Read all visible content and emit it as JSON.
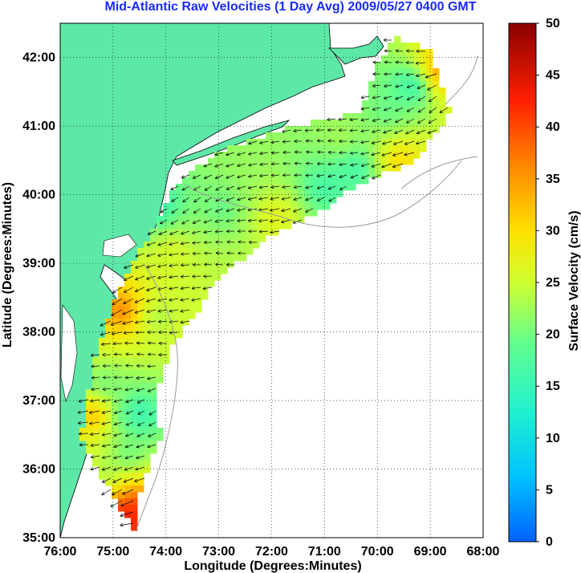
{
  "title": "Mid-Atlantic Raw Velocities (1 Day Avg) 2009/05/27 0400 GMT",
  "map": {
    "xlabel": "Longitude (Degrees:Minutes)",
    "ylabel": "Latitude (Degrees:Minutes)",
    "lon_range": [
      -76,
      -68
    ],
    "lat_range": [
      35,
      42.5
    ],
    "x_ticks": [
      {
        "value": -76,
        "label": "76:00"
      },
      {
        "value": -75,
        "label": "75:00"
      },
      {
        "value": -74,
        "label": "74:00"
      },
      {
        "value": -73,
        "label": "73:00"
      },
      {
        "value": -72,
        "label": "72:00"
      },
      {
        "value": -71,
        "label": "71:00"
      },
      {
        "value": -70,
        "label": "70:00"
      },
      {
        "value": -69,
        "label": "69:00"
      },
      {
        "value": -68,
        "label": "68:00"
      }
    ],
    "y_ticks": [
      {
        "value": 35,
        "label": "35:00"
      },
      {
        "value": 36,
        "label": "36:00"
      },
      {
        "value": 37,
        "label": "37:00"
      },
      {
        "value": 38,
        "label": "38:00"
      },
      {
        "value": 39,
        "label": "39:00"
      },
      {
        "value": 40,
        "label": "40:00"
      },
      {
        "value": 41,
        "label": "41:00"
      },
      {
        "value": 42,
        "label": "42:00"
      }
    ],
    "grid": true,
    "land_color": "#5ee8a8",
    "ocean_color": "#ffffff",
    "bathymetry_color": "#9a9a9a"
  },
  "colorbar": {
    "label": "Surface Velocity (cm/s)",
    "min": 0,
    "max": 50,
    "ticks": [
      "0",
      "5",
      "10",
      "15",
      "20",
      "25",
      "30",
      "35",
      "40",
      "45",
      "50"
    ],
    "colormap": [
      "#0060ff",
      "#00c0ff",
      "#20f0d0",
      "#60ff90",
      "#d0ff30",
      "#ffe000",
      "#ff8c00",
      "#ff2000",
      "#8b0000"
    ]
  },
  "chart_data": {
    "type": "heatmap",
    "title": "Mid-Atlantic Raw Velocities (1 Day Avg) 2009/05/27 0400 GMT",
    "xlabel": "Longitude (Degrees:Minutes)",
    "ylabel": "Latitude (Degrees:Minutes)",
    "xlim": [
      -76,
      -68
    ],
    "ylim": [
      35,
      42.5
    ],
    "colorbar_label": "Surface Velocity (cm/s)",
    "clim": [
      0,
      50
    ],
    "grid": true,
    "coverage_polygon": [
      [
        -75.6,
        36.5
      ],
      [
        -75.35,
        37.6
      ],
      [
        -74.9,
        38.6
      ],
      [
        -74.4,
        39.3
      ],
      [
        -73.9,
        40.0
      ],
      [
        -73.6,
        40.3
      ],
      [
        -72.8,
        40.7
      ],
      [
        -72.0,
        40.9
      ],
      [
        -71.0,
        41.1
      ],
      [
        -70.3,
        41.2
      ],
      [
        -70.0,
        41.9
      ],
      [
        -69.7,
        42.3
      ],
      [
        -69.0,
        42.1
      ],
      [
        -68.6,
        41.2
      ],
      [
        -69.3,
        40.5
      ],
      [
        -70.5,
        40.1
      ],
      [
        -71.0,
        39.8
      ],
      [
        -72.0,
        39.4
      ],
      [
        -73.0,
        38.8
      ],
      [
        -73.4,
        38.3
      ],
      [
        -73.9,
        37.8
      ],
      [
        -74.2,
        37.0
      ],
      [
        -74.1,
        36.5
      ],
      [
        -74.5,
        35.6
      ],
      [
        -74.6,
        35.1
      ],
      [
        -74.9,
        35.5
      ],
      [
        -75.3,
        36.0
      ],
      [
        -75.6,
        36.5
      ]
    ],
    "velocity_blobs": [
      {
        "lon": -74.2,
        "lat": 39.8,
        "speed": 12
      },
      {
        "lon": -72.9,
        "lat": 39.8,
        "speed": 18
      },
      {
        "lon": -71.9,
        "lat": 39.7,
        "speed": 30
      },
      {
        "lon": -71.0,
        "lat": 40.1,
        "speed": 14
      },
      {
        "lon": -70.4,
        "lat": 40.4,
        "speed": 13
      },
      {
        "lon": -69.6,
        "lat": 40.5,
        "speed": 36
      },
      {
        "lon": -69.8,
        "lat": 41.2,
        "speed": 18
      },
      {
        "lon": -69.3,
        "lat": 41.6,
        "speed": 10
      },
      {
        "lon": -68.8,
        "lat": 41.8,
        "speed": 44
      },
      {
        "lon": -73.9,
        "lat": 39.2,
        "speed": 27
      },
      {
        "lon": -74.8,
        "lat": 38.3,
        "speed": 44
      },
      {
        "lon": -74.2,
        "lat": 38.2,
        "speed": 20
      },
      {
        "lon": -73.7,
        "lat": 38.0,
        "speed": 26
      },
      {
        "lon": -75.2,
        "lat": 37.2,
        "speed": 16
      },
      {
        "lon": -74.9,
        "lat": 36.8,
        "speed": 14
      },
      {
        "lon": -75.3,
        "lat": 36.8,
        "speed": 46
      },
      {
        "lon": -74.5,
        "lat": 36.8,
        "speed": 10
      },
      {
        "lon": -74.7,
        "lat": 36.2,
        "speed": 16
      },
      {
        "lon": -74.6,
        "lat": 35.5,
        "speed": 46
      },
      {
        "lon": -74.8,
        "lat": 35.3,
        "speed": 50
      },
      {
        "lon": -75.1,
        "lat": 35.9,
        "speed": 20
      },
      {
        "lon": -72.5,
        "lat": 40.4,
        "speed": 22
      },
      {
        "lon": -70.7,
        "lat": 40.8,
        "speed": 24
      }
    ],
    "dominant_flow": "southwestward along shelf"
  }
}
